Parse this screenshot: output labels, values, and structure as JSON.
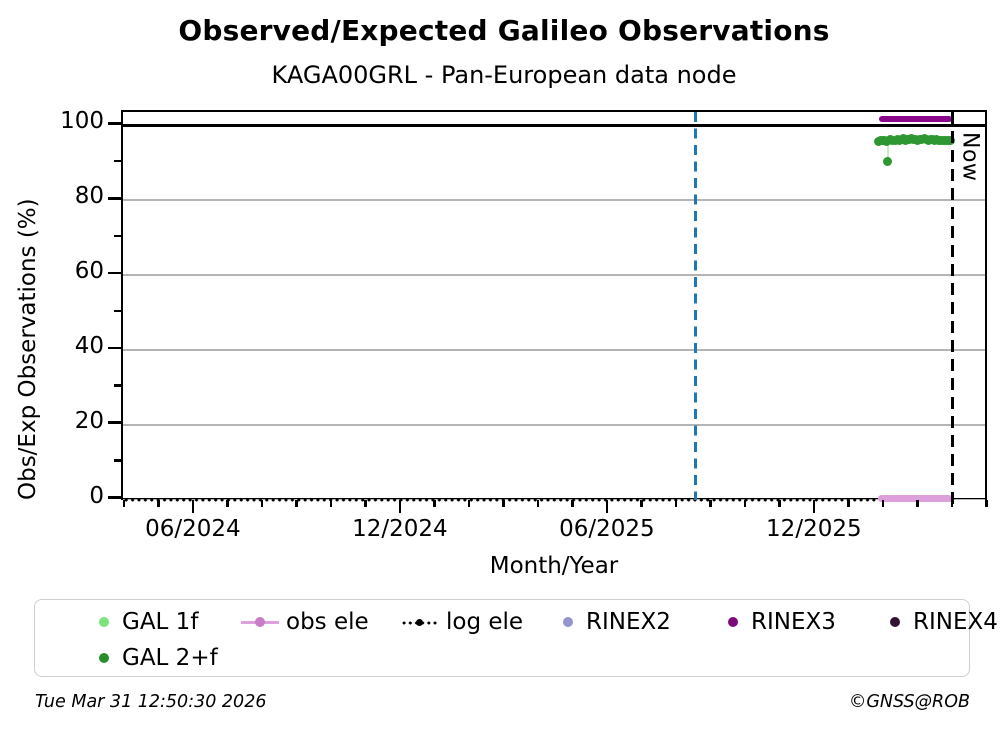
{
  "header": {
    "title": "Observed/Expected Galileo Observations",
    "subtitle": "KAGA00GRL - Pan-European data node"
  },
  "footer": {
    "timestamp": "Tue Mar 31 12:50:30 2026",
    "credit": "©GNSS@ROB"
  },
  "chart_data": {
    "type": "scatter",
    "title": "Observed/Expected Galileo Observations",
    "subtitle": "KAGA00GRL - Pan-European data node",
    "xlabel": "Month/Year",
    "ylabel": "Obs/Exp Observations (%)",
    "x_unit": "decimal_year",
    "xlim": [
      2024.243,
      2026.335
    ],
    "ylim": [
      -0.65,
      103.6
    ],
    "grid": {
      "show": true,
      "color": "#b4b4b4",
      "gridline_levels": [
        0,
        20,
        40,
        60,
        80
      ]
    },
    "xticks": [
      {
        "value": 2024.4167,
        "label": "06/2024"
      },
      {
        "value": 2024.9167,
        "label": "12/2024"
      },
      {
        "value": 2025.4167,
        "label": "06/2025"
      },
      {
        "value": 2025.9167,
        "label": "12/2025"
      }
    ],
    "x_minor_months_range": [
      3,
      28
    ],
    "yticks": [
      {
        "value": 0,
        "label": "0"
      },
      {
        "value": 20,
        "label": "20"
      },
      {
        "value": 40,
        "label": "40"
      },
      {
        "value": 60,
        "label": "60"
      },
      {
        "value": 80,
        "label": "80"
      },
      {
        "value": 100,
        "label": "100"
      }
    ],
    "y_minor_ticks": [
      10,
      30,
      50,
      70,
      90
    ],
    "reference_hline": {
      "y": 100,
      "color": "#000000"
    },
    "vlines": [
      {
        "name": "event-line",
        "x": 2025.625,
        "color": "#1f77b4",
        "style": "dashed",
        "label": ""
      },
      {
        "name": "now-line",
        "x": 2026.247,
        "color": "#000000",
        "style": "dashed",
        "label": "Now"
      }
    ],
    "series": [
      {
        "name": "GAL 1f",
        "color": "#7de37d",
        "marker": "dot",
        "points": []
      },
      {
        "name": "GAL 2+f",
        "color": "#2e9732",
        "marker": "dot",
        "points": [
          [
            2026.068,
            95.8
          ],
          [
            2026.073,
            96.0
          ],
          [
            2026.078,
            95.9
          ],
          [
            2026.083,
            96.1
          ],
          [
            2026.088,
            95.7
          ],
          [
            2026.091,
            90.4
          ],
          [
            2026.093,
            96.0
          ],
          [
            2026.098,
            96.2
          ],
          [
            2026.103,
            95.9
          ],
          [
            2026.108,
            96.1
          ],
          [
            2026.113,
            96.3
          ],
          [
            2026.118,
            96.0
          ],
          [
            2026.123,
            96.2
          ],
          [
            2026.128,
            96.4
          ],
          [
            2026.133,
            96.1
          ],
          [
            2026.138,
            96.3
          ],
          [
            2026.143,
            96.2
          ],
          [
            2026.148,
            96.4
          ],
          [
            2026.153,
            96.2
          ],
          [
            2026.158,
            96.3
          ],
          [
            2026.163,
            96.1
          ],
          [
            2026.168,
            96.3
          ],
          [
            2026.173,
            96.2
          ],
          [
            2026.178,
            96.4
          ],
          [
            2026.183,
            96.2
          ],
          [
            2026.188,
            96.1
          ],
          [
            2026.193,
            96.3
          ],
          [
            2026.198,
            96.2
          ],
          [
            2026.203,
            96.0
          ],
          [
            2026.208,
            96.2
          ],
          [
            2026.213,
            96.1
          ],
          [
            2026.218,
            96.0
          ],
          [
            2026.223,
            96.1
          ],
          [
            2026.228,
            95.9
          ],
          [
            2026.233,
            96.0
          ],
          [
            2026.238,
            95.9
          ],
          [
            2026.243,
            96.0
          ]
        ]
      },
      {
        "name": "obs ele",
        "color": "#dda0dd",
        "marker": "line-dot",
        "render": "band",
        "band": {
          "x_start": 2026.068,
          "x_end": 2026.246,
          "value": 0.4,
          "thickness": 7
        }
      },
      {
        "name": "log ele",
        "color": "#000000",
        "marker": "dotted-line",
        "render": "dotted",
        "band": {
          "x_start": 2024.243,
          "x_end": 2026.247,
          "value": 0
        }
      },
      {
        "name": "RINEX2",
        "color": "#9595cd",
        "marker": "dot",
        "points": []
      },
      {
        "name": "RINEX3",
        "color": "#8b068b",
        "marker": "dot",
        "render": "band",
        "band": {
          "x_start": 2026.069,
          "x_end": 2026.246,
          "value": 101.7,
          "thickness": 6.5
        }
      },
      {
        "name": "RINEX4",
        "color": "#321233",
        "marker": "dot",
        "points": []
      }
    ],
    "outlier_connector": {
      "x": 2026.091,
      "y_from": 95.7,
      "y_to": 90.4,
      "color": "#c9ecc9"
    }
  },
  "legend": {
    "items": [
      {
        "label": "GAL 1f",
        "color": "#7de37d",
        "marker": "dot"
      },
      {
        "label": "obs ele",
        "color": "#dda0dd",
        "marker_color": "#c77ec7",
        "marker": "line-dot"
      },
      {
        "label": "log ele",
        "color": "#000000",
        "marker": "dotted-line-dot"
      },
      {
        "label": "RINEX2",
        "color": "#9595cd",
        "marker": "dot"
      },
      {
        "label": "RINEX3",
        "color": "#7d0a7d",
        "marker": "dot"
      },
      {
        "label": "RINEX4",
        "color": "#321233",
        "marker": "dot"
      },
      {
        "label": "GAL 2+f",
        "color": "#2a8f2a",
        "marker": "dot"
      }
    ]
  }
}
